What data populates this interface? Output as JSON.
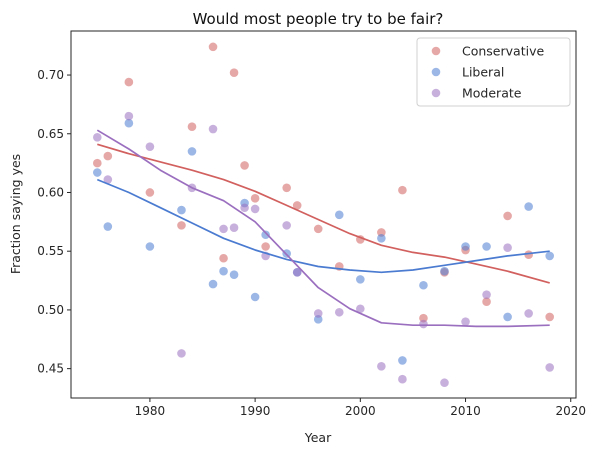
{
  "chart_data": {
    "type": "scatter",
    "title": "Would most people try to be fair?",
    "xlabel": "Year",
    "ylabel": "Fraction saying yes",
    "xlim": [
      1972.5,
      2020.5
    ],
    "ylim": [
      0.425,
      0.7375
    ],
    "x_ticks": [
      1980,
      1990,
      2000,
      2010,
      2020
    ],
    "y_ticks": [
      0.45,
      0.5,
      0.55,
      0.6,
      0.65,
      0.7
    ],
    "grid": false,
    "legend_position": "top-right",
    "series": [
      {
        "name": "Conservative",
        "color": "#d1605e",
        "points": [
          [
            1975,
            0.625
          ],
          [
            1976,
            0.631
          ],
          [
            1978,
            0.694
          ],
          [
            1980,
            0.6
          ],
          [
            1983,
            0.572
          ],
          [
            1984,
            0.656
          ],
          [
            1986,
            0.724
          ],
          [
            1987,
            0.544
          ],
          [
            1988,
            0.702
          ],
          [
            1989,
            0.623
          ],
          [
            1990,
            0.595
          ],
          [
            1991,
            0.554
          ],
          [
            1993,
            0.604
          ],
          [
            1994,
            0.589
          ],
          [
            1996,
            0.569
          ],
          [
            1998,
            0.537
          ],
          [
            2000,
            0.56
          ],
          [
            2002,
            0.566
          ],
          [
            2004,
            0.602
          ],
          [
            2006,
            0.493
          ],
          [
            2008,
            0.532
          ],
          [
            2010,
            0.551
          ],
          [
            2012,
            0.507
          ],
          [
            2014,
            0.58
          ],
          [
            2016,
            0.547
          ],
          [
            2018,
            0.494
          ]
        ],
        "trend": [
          [
            1975,
            0.641
          ],
          [
            1978,
            0.633
          ],
          [
            1981,
            0.626
          ],
          [
            1984,
            0.619
          ],
          [
            1987,
            0.611
          ],
          [
            1990,
            0.601
          ],
          [
            1993,
            0.589
          ],
          [
            1996,
            0.577
          ],
          [
            1999,
            0.565
          ],
          [
            2002,
            0.555
          ],
          [
            2005,
            0.549
          ],
          [
            2008,
            0.545
          ],
          [
            2011,
            0.539
          ],
          [
            2014,
            0.533
          ],
          [
            2018,
            0.523
          ]
        ]
      },
      {
        "name": "Liberal",
        "color": "#4a7bd1",
        "points": [
          [
            1975,
            0.617
          ],
          [
            1976,
            0.571
          ],
          [
            1978,
            0.659
          ],
          [
            1980,
            0.554
          ],
          [
            1983,
            0.585
          ],
          [
            1984,
            0.635
          ],
          [
            1986,
            0.522
          ],
          [
            1987,
            0.533
          ],
          [
            1988,
            0.53
          ],
          [
            1989,
            0.591
          ],
          [
            1990,
            0.511
          ],
          [
            1991,
            0.564
          ],
          [
            1993,
            0.548
          ],
          [
            1994,
            0.532
          ],
          [
            1996,
            0.492
          ],
          [
            1998,
            0.581
          ],
          [
            2000,
            0.526
          ],
          [
            2002,
            0.561
          ],
          [
            2004,
            0.457
          ],
          [
            2006,
            0.521
          ],
          [
            2008,
            0.533
          ],
          [
            2010,
            0.554
          ],
          [
            2012,
            0.554
          ],
          [
            2014,
            0.494
          ],
          [
            2016,
            0.588
          ],
          [
            2018,
            0.546
          ]
        ],
        "trend": [
          [
            1975,
            0.611
          ],
          [
            1978,
            0.6
          ],
          [
            1981,
            0.587
          ],
          [
            1984,
            0.574
          ],
          [
            1987,
            0.561
          ],
          [
            1990,
            0.551
          ],
          [
            1993,
            0.543
          ],
          [
            1996,
            0.537
          ],
          [
            1999,
            0.534
          ],
          [
            2002,
            0.532
          ],
          [
            2005,
            0.534
          ],
          [
            2008,
            0.538
          ],
          [
            2011,
            0.542
          ],
          [
            2014,
            0.546
          ],
          [
            2018,
            0.55
          ]
        ]
      },
      {
        "name": "Moderate",
        "color": "#9b6fbf",
        "points": [
          [
            1975,
            0.647
          ],
          [
            1976,
            0.611
          ],
          [
            1978,
            0.665
          ],
          [
            1980,
            0.639
          ],
          [
            1983,
            0.463
          ],
          [
            1984,
            0.604
          ],
          [
            1986,
            0.654
          ],
          [
            1987,
            0.569
          ],
          [
            1988,
            0.57
          ],
          [
            1989,
            0.587
          ],
          [
            1990,
            0.586
          ],
          [
            1991,
            0.546
          ],
          [
            1993,
            0.572
          ],
          [
            1994,
            0.532
          ],
          [
            1996,
            0.497
          ],
          [
            1998,
            0.498
          ],
          [
            2000,
            0.501
          ],
          [
            2002,
            0.452
          ],
          [
            2004,
            0.441
          ],
          [
            2006,
            0.488
          ],
          [
            2008,
            0.438
          ],
          [
            2010,
            0.49
          ],
          [
            2012,
            0.513
          ],
          [
            2014,
            0.553
          ],
          [
            2016,
            0.497
          ],
          [
            2018,
            0.451
          ]
        ],
        "trend": [
          [
            1975,
            0.653
          ],
          [
            1978,
            0.637
          ],
          [
            1981,
            0.619
          ],
          [
            1984,
            0.604
          ],
          [
            1987,
            0.593
          ],
          [
            1990,
            0.575
          ],
          [
            1993,
            0.547
          ],
          [
            1996,
            0.519
          ],
          [
            1999,
            0.501
          ],
          [
            2002,
            0.489
          ],
          [
            2005,
            0.487
          ],
          [
            2008,
            0.487
          ],
          [
            2011,
            0.486
          ],
          [
            2014,
            0.486
          ],
          [
            2018,
            0.487
          ]
        ]
      }
    ]
  }
}
